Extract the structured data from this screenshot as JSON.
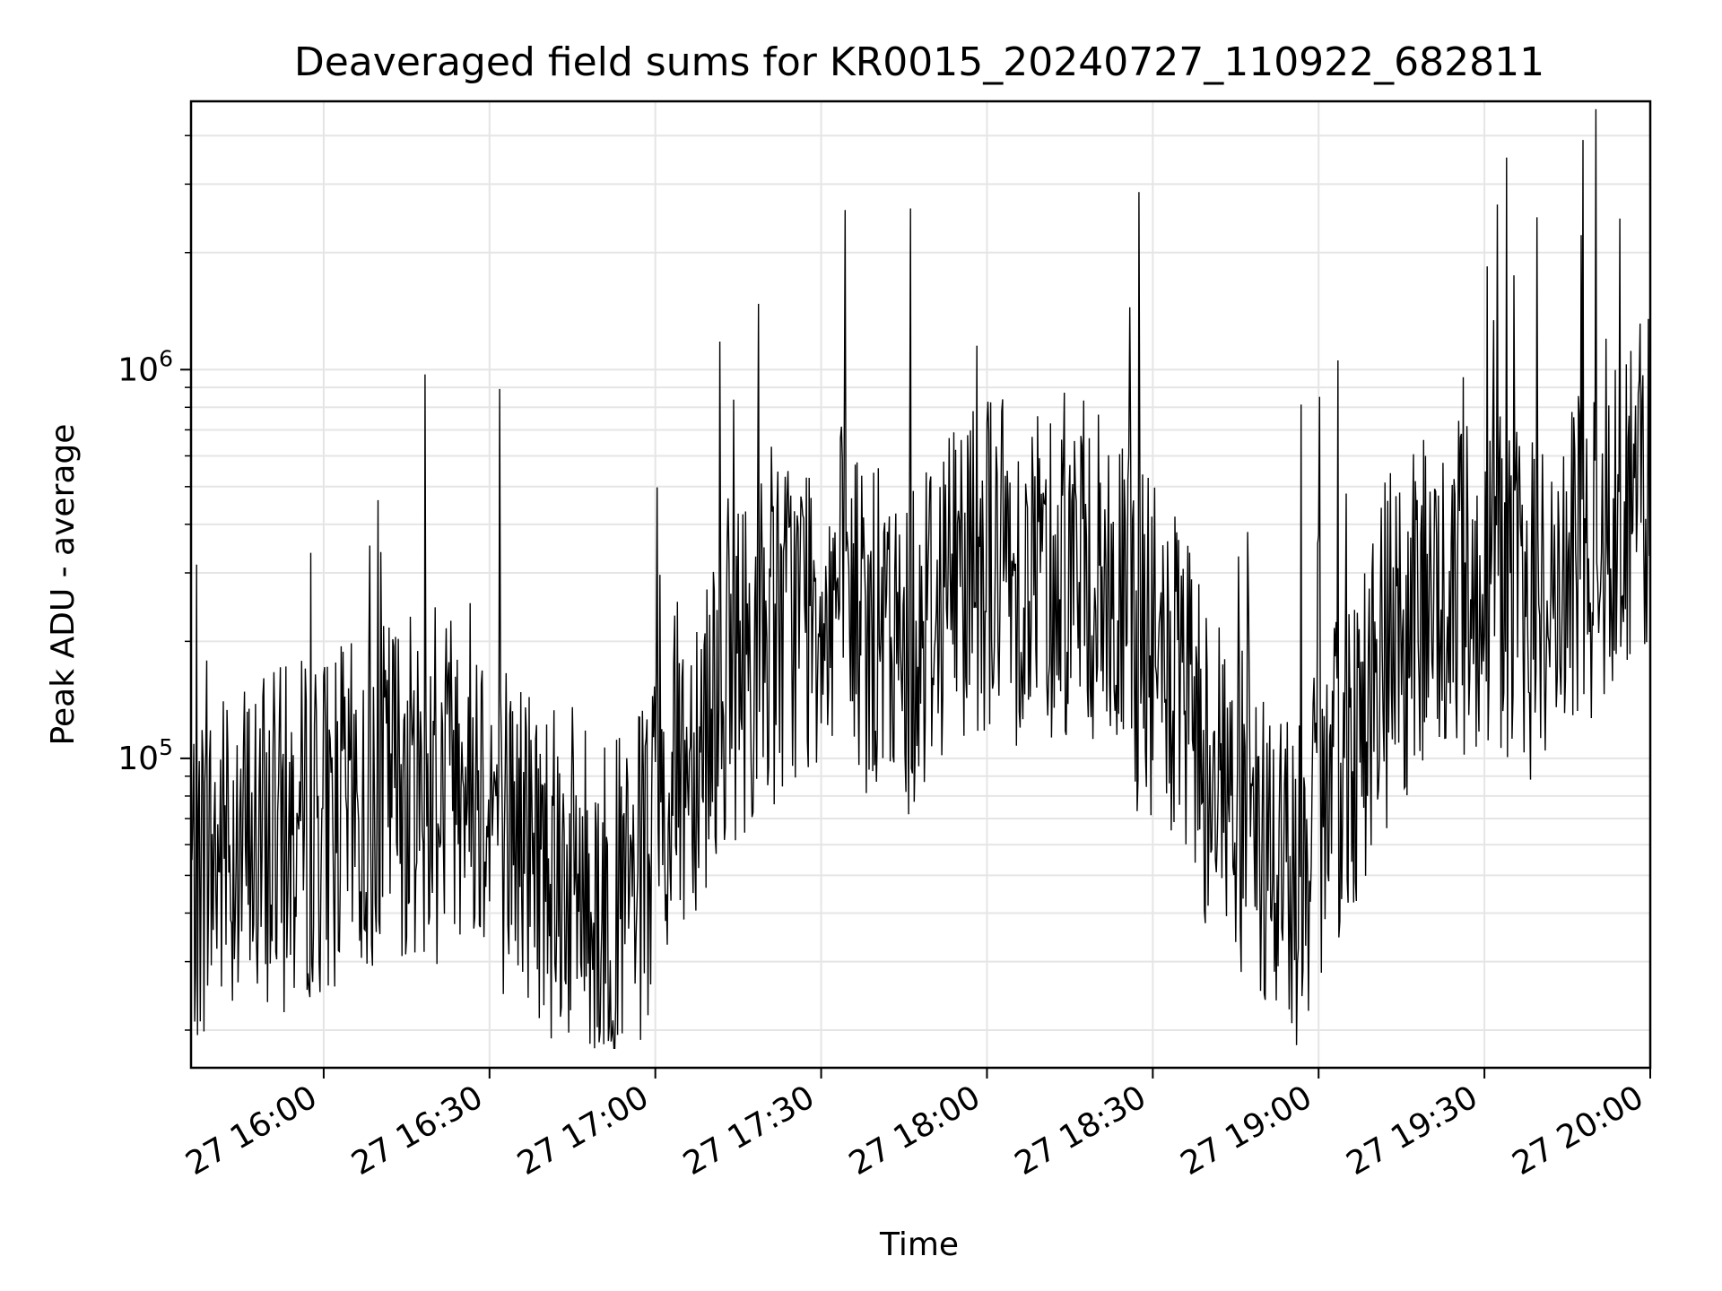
{
  "chart_data": {
    "type": "line",
    "title": "Deaveraged field sums for KR0015_20240727_110922_682811",
    "xlabel": "Time",
    "ylabel": "Peak ADU - average",
    "y_scale": "log",
    "ylim": [
      16000,
      4900000
    ],
    "xlim": [
      "2024-07-27 15:36",
      "2024-07-27 20:00"
    ],
    "x_tick_labels": [
      "27 16:00",
      "27 16:30",
      "27 17:00",
      "27 17:30",
      "27 18:00",
      "27 18:30",
      "27 19:00",
      "27 19:30",
      "27 20:00"
    ],
    "x_ticks": [
      "2024-07-27 16:00",
      "2024-07-27 16:30",
      "2024-07-27 17:00",
      "2024-07-27 17:30",
      "2024-07-27 18:00",
      "2024-07-27 18:30",
      "2024-07-27 19:00",
      "2024-07-27 19:30",
      "2024-07-27 20:00"
    ],
    "y_tick_labels": [
      {
        "value": 100000,
        "mantissa": "10",
        "exponent": "5"
      },
      {
        "value": 1000000,
        "mantissa": "10",
        "exponent": "6"
      }
    ],
    "grid": true,
    "line_color": "#000000",
    "series": [
      {
        "x": [
          "2024-07-27 15:36",
          "2024-07-27 15:40",
          "2024-07-27 15:44",
          "2024-07-27 15:48",
          "2024-07-27 15:52",
          "2024-07-27 15:56",
          "2024-07-27 16:00",
          "2024-07-27 16:04",
          "2024-07-27 16:08",
          "2024-07-27 16:12",
          "2024-07-27 16:16",
          "2024-07-27 16:20",
          "2024-07-27 16:24",
          "2024-07-27 16:28",
          "2024-07-27 16:32",
          "2024-07-27 16:36",
          "2024-07-27 16:40",
          "2024-07-27 16:44",
          "2024-07-27 16:48",
          "2024-07-27 16:52",
          "2024-07-27 16:56",
          "2024-07-27 17:00",
          "2024-07-27 17:04",
          "2024-07-27 17:08",
          "2024-07-27 17:12",
          "2024-07-27 17:16",
          "2024-07-27 17:20",
          "2024-07-27 17:24",
          "2024-07-27 17:28",
          "2024-07-27 17:32",
          "2024-07-27 17:36",
          "2024-07-27 17:40",
          "2024-07-27 17:44",
          "2024-07-27 17:48",
          "2024-07-27 17:52",
          "2024-07-27 17:56",
          "2024-07-27 18:00",
          "2024-07-27 18:04",
          "2024-07-27 18:08",
          "2024-07-27 18:12",
          "2024-07-27 18:16",
          "2024-07-27 18:20",
          "2024-07-27 18:24",
          "2024-07-27 18:28",
          "2024-07-27 18:32",
          "2024-07-27 18:36",
          "2024-07-27 18:40",
          "2024-07-27 18:44",
          "2024-07-27 18:48",
          "2024-07-27 18:52",
          "2024-07-27 18:56",
          "2024-07-27 19:00",
          "2024-07-27 19:04",
          "2024-07-27 19:08",
          "2024-07-27 19:12",
          "2024-07-27 19:16",
          "2024-07-27 19:20",
          "2024-07-27 19:24",
          "2024-07-27 19:28",
          "2024-07-27 19:32",
          "2024-07-27 19:36",
          "2024-07-27 19:40",
          "2024-07-27 19:44",
          "2024-07-27 19:48",
          "2024-07-27 19:52",
          "2024-07-27 19:56",
          "2024-07-27 20:00"
        ],
        "y": [
          50000,
          55000,
          60000,
          58000,
          62000,
          65000,
          70000,
          72000,
          68000,
          90000,
          85000,
          80000,
          100000,
          95000,
          70000,
          65000,
          55000,
          50000,
          45000,
          40000,
          42000,
          60000,
          90000,
          120000,
          160000,
          180000,
          200000,
          230000,
          250000,
          270000,
          240000,
          200000,
          180000,
          220000,
          280000,
          320000,
          330000,
          310000,
          290000,
          300000,
          320000,
          280000,
          230000,
          200000,
          170000,
          130000,
          100000,
          80000,
          60000,
          55000,
          50000,
          60000,
          90000,
          130000,
          170000,
          210000,
          230000,
          260000,
          280000,
          290000,
          260000,
          240000,
          280000,
          330000,
          400000,
          460000,
          520000
        ]
      }
    ]
  }
}
